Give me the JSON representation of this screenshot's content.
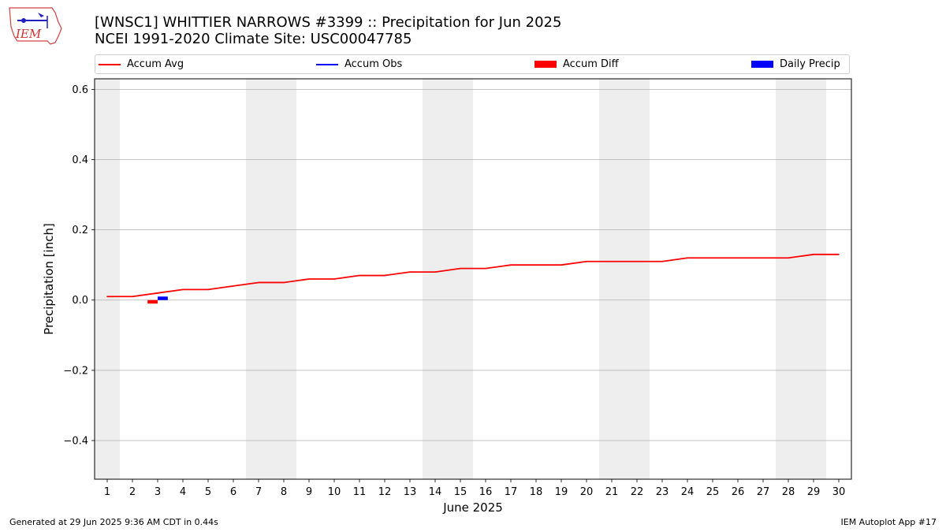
{
  "title": {
    "line1": "[WNSC1] WHITTIER NARROWS #3399 :: Precipitation for Jun 2025",
    "line2": "NCEI 1991-2020 Climate Site: USC00047785"
  },
  "logo": {
    "text": "IEM"
  },
  "footer": {
    "left": "Generated at 29 Jun 2025 9:36 AM CDT in 0.44s",
    "right": "IEM Autoplot App #17"
  },
  "legend": [
    {
      "label": "Accum Avg",
      "kind": "line",
      "color": "#ff0000"
    },
    {
      "label": "Accum Obs",
      "kind": "line",
      "color": "#0000ff"
    },
    {
      "label": "Accum Diff",
      "kind": "box",
      "color": "#ff0000"
    },
    {
      "label": "Daily Precip",
      "kind": "box",
      "color": "#0000ff"
    }
  ],
  "chart_data": {
    "type": "line",
    "xlabel": "June 2025",
    "ylabel": "Precipitation [inch]",
    "x": [
      1,
      2,
      3,
      4,
      5,
      6,
      7,
      8,
      9,
      10,
      11,
      12,
      13,
      14,
      15,
      16,
      17,
      18,
      19,
      20,
      21,
      22,
      23,
      24,
      25,
      26,
      27,
      28,
      29,
      30
    ],
    "xlim": [
      0.5,
      30.5
    ],
    "ylim": [
      -0.51,
      0.63
    ],
    "yticks": [
      0.6,
      0.4,
      0.2,
      0.0,
      -0.2,
      -0.4
    ],
    "ytick_labels": [
      "0.6",
      "0.4",
      "0.2",
      "0.0",
      "−0.2",
      "−0.4"
    ],
    "grid": "horizontal",
    "weekend_shading": [
      [
        0.5,
        1.5
      ],
      [
        6.5,
        8.5
      ],
      [
        13.5,
        15.5
      ],
      [
        20.5,
        22.5
      ],
      [
        27.5,
        29.5
      ]
    ],
    "series": [
      {
        "name": "Accum Avg",
        "kind": "line",
        "color": "#ff0000",
        "values": [
          0.01,
          0.01,
          0.02,
          0.03,
          0.03,
          0.04,
          0.05,
          0.05,
          0.06,
          0.06,
          0.07,
          0.07,
          0.08,
          0.08,
          0.09,
          0.09,
          0.1,
          0.1,
          0.1,
          0.11,
          0.11,
          0.11,
          0.11,
          0.12,
          0.12,
          0.12,
          0.12,
          0.12,
          0.13,
          0.13
        ]
      },
      {
        "name": "Accum Diff",
        "kind": "bar",
        "color": "#ff0000",
        "points": [
          {
            "x": 3,
            "y": -0.01
          }
        ]
      },
      {
        "name": "Daily Precip",
        "kind": "bar",
        "color": "#0000ff",
        "points": [
          {
            "x": 3,
            "y": 0.01
          }
        ]
      }
    ]
  }
}
